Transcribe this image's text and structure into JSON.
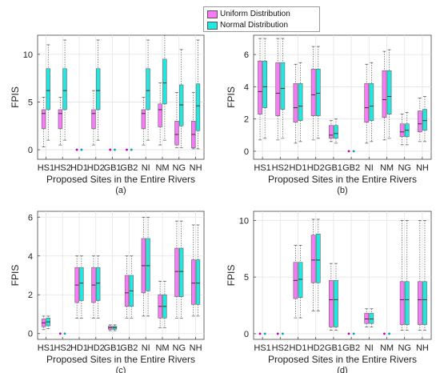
{
  "legend": [
    {
      "label": "Uniform Distribution",
      "color": "#f77af7"
    },
    {
      "label": "Normal Distribution",
      "color": "#22e6e0"
    }
  ],
  "chart_data": [
    {
      "type": "box",
      "panel": "(a)",
      "ylabel": "FPIS",
      "xlabel": "Proposed Sites in the Entire Rivers",
      "categories": [
        "HS1",
        "HS2",
        "HD1",
        "HD2",
        "GB1",
        "GB2",
        "NI",
        "NM",
        "NG",
        "NH"
      ],
      "ylim": [
        -1,
        12
      ],
      "yticks": [
        0,
        5,
        10
      ],
      "grid": true,
      "series": [
        {
          "name": "Uniform Distribution",
          "color": "#f77af7",
          "boxes": [
            [
              0.3,
              2.2,
              3.8,
              4.2,
              5.5
            ],
            [
              0.5,
              2.2,
              3.8,
              4.2,
              5.5
            ],
            [
              0,
              0,
              0,
              0,
              0
            ],
            [
              0.5,
              2.2,
              3.8,
              4.2,
              6.2
            ],
            [
              0,
              0,
              0,
              0,
              0
            ],
            [
              0,
              0,
              0,
              0,
              0
            ],
            [
              0.5,
              2.2,
              3.8,
              4.2,
              5.5
            ],
            [
              0.5,
              2.4,
              4.2,
              4.8,
              7.0
            ],
            [
              0.2,
              0.5,
              1.6,
              3.0,
              6.0
            ],
            [
              0.1,
              0.2,
              1.6,
              3.0,
              6.0
            ]
          ]
        },
        {
          "name": "Normal Distribution",
          "color": "#22e6e0",
          "boxes": [
            [
              1.0,
              4.2,
              6.2,
              8.5,
              11.0
            ],
            [
              1.0,
              4.2,
              6.2,
              8.5,
              11.5
            ],
            [
              0,
              0,
              0,
              0,
              0
            ],
            [
              1.0,
              4.2,
              6.2,
              8.5,
              11.5
            ],
            [
              0,
              0,
              0,
              0,
              0
            ],
            [
              0,
              0,
              0,
              0,
              0
            ],
            [
              1.0,
              4.2,
              6.2,
              8.5,
              11.5
            ],
            [
              1.0,
              4.8,
              7.0,
              9.5,
              12.0
            ],
            [
              0.2,
              2.5,
              4.7,
              6.8,
              10.5
            ],
            [
              0.1,
              2.0,
              4.6,
              6.9,
              11.5
            ]
          ]
        }
      ]
    },
    {
      "type": "box",
      "panel": "(b)",
      "ylabel": "FPIS",
      "xlabel": "Proposed Sites in the Entire Rivers",
      "categories": [
        "HS1",
        "HS2",
        "HD1",
        "HD2",
        "GB1",
        "GB2",
        "NI",
        "NM",
        "NG",
        "NH"
      ],
      "ylim": [
        -0.5,
        7.2
      ],
      "yticks": [
        0,
        2,
        4,
        6
      ],
      "grid": true,
      "series": [
        {
          "name": "Uniform Distribution",
          "color": "#f77af7",
          "boxes": [
            [
              0.7,
              2.3,
              3.7,
              5.6,
              7.0
            ],
            [
              0.7,
              2.2,
              3.6,
              5.5,
              7.0
            ],
            [
              0.5,
              1.8,
              2.7,
              4.2,
              5.4
            ],
            [
              0.7,
              2.2,
              3.5,
              5.1,
              6.5
            ],
            [
              0.6,
              0.8,
              1.0,
              1.6,
              1.9
            ],
            [
              0,
              0,
              0,
              0,
              0
            ],
            [
              0.5,
              1.8,
              2.7,
              4.2,
              5.4
            ],
            [
              0.7,
              2.1,
              3.2,
              5.0,
              6.2
            ],
            [
              0.4,
              0.9,
              1.2,
              1.7,
              2.3
            ],
            [
              0.6,
              1.2,
              1.7,
              2.5,
              3.3
            ]
          ]
        },
        {
          "name": "Normal Distribution",
          "color": "#22e6e0",
          "boxes": [
            [
              0.8,
              2.7,
              4.0,
              5.6,
              7.0
            ],
            [
              0.8,
              2.6,
              3.9,
              5.5,
              7.0
            ],
            [
              0.6,
              1.9,
              2.8,
              4.2,
              5.5
            ],
            [
              0.8,
              2.2,
              3.6,
              5.1,
              6.5
            ],
            [
              0.5,
              0.8,
              1.1,
              1.6,
              2.0
            ],
            [
              0,
              0,
              0,
              0,
              0
            ],
            [
              0.6,
              1.9,
              2.8,
              4.2,
              5.5
            ],
            [
              0.8,
              2.3,
              3.4,
              5.0,
              6.3
            ],
            [
              0.4,
              0.9,
              1.3,
              1.7,
              2.4
            ],
            [
              0.6,
              1.3,
              1.9,
              2.6,
              3.4
            ]
          ]
        }
      ]
    },
    {
      "type": "box",
      "panel": "(c)",
      "ylabel": "FPIS",
      "xlabel": "Proposed Sites in the Entire Rivers",
      "categories": [
        "HS1",
        "HS2",
        "HD1",
        "HD2",
        "GB1",
        "GB2",
        "NI",
        "NM",
        "NG",
        "NH"
      ],
      "ylim": [
        -0.3,
        6.3
      ],
      "yticks": [
        0,
        2,
        4,
        6
      ],
      "grid": true,
      "series": [
        {
          "name": "Uniform Distribution",
          "color": "#f77af7",
          "boxes": [
            [
              0.2,
              0.35,
              0.55,
              0.75,
              0.9
            ],
            [
              0,
              0,
              0,
              0,
              0
            ],
            [
              0.8,
              1.6,
              2.5,
              3.4,
              4.0
            ],
            [
              0.8,
              1.6,
              2.5,
              3.4,
              4.0
            ],
            [
              0.15,
              0.22,
              0.3,
              0.38,
              0.45
            ],
            [
              0.8,
              1.4,
              2.1,
              3.0,
              4.0
            ],
            [
              0.9,
              2.1,
              3.5,
              4.9,
              6.0
            ],
            [
              0.3,
              0.8,
              1.4,
              2.0,
              2.7
            ],
            [
              0.8,
              1.9,
              3.2,
              4.4,
              5.8
            ],
            [
              0.9,
              1.5,
              2.6,
              3.8,
              5.6
            ]
          ]
        },
        {
          "name": "Normal Distribution",
          "color": "#22e6e0",
          "boxes": [
            [
              0.25,
              0.4,
              0.6,
              0.8,
              0.9
            ],
            [
              0,
              0,
              0,
              0,
              0
            ],
            [
              0.8,
              1.7,
              2.6,
              3.4,
              4.0
            ],
            [
              0.8,
              1.7,
              2.6,
              3.4,
              4.0
            ],
            [
              0.15,
              0.22,
              0.3,
              0.38,
              0.45
            ],
            [
              0.8,
              1.4,
              2.2,
              3.0,
              4.0
            ],
            [
              0.9,
              2.2,
              3.5,
              4.9,
              6.0
            ],
            [
              0.3,
              0.8,
              1.4,
              2.0,
              2.7
            ],
            [
              0.8,
              1.9,
              3.2,
              4.4,
              5.8
            ],
            [
              0.9,
              1.5,
              2.6,
              3.8,
              5.6
            ]
          ]
        }
      ]
    },
    {
      "type": "box",
      "panel": "(d)",
      "ylabel": "FPIS",
      "xlabel": "Proposed Sites in the Entire Rivers",
      "categories": [
        "HS1",
        "HS2",
        "HD1",
        "HD2",
        "GB1",
        "GB2",
        "NI",
        "NM",
        "NG",
        "NH"
      ],
      "ylim": [
        -0.5,
        10.8
      ],
      "yticks": [
        0,
        5,
        10
      ],
      "grid": true,
      "series": [
        {
          "name": "Uniform Distribution",
          "color": "#f77af7",
          "boxes": [
            [
              0,
              0,
              0,
              0,
              0
            ],
            [
              0,
              0,
              0,
              0,
              0
            ],
            [
              1.4,
              3.1,
              4.7,
              6.3,
              7.8
            ],
            [
              2.0,
              4.5,
              6.5,
              8.7,
              10.1
            ],
            [
              0.3,
              0.6,
              3.0,
              4.7,
              6.2
            ],
            [
              0,
              0,
              0,
              0,
              0
            ],
            [
              0.6,
              0.9,
              1.3,
              1.8,
              2.2
            ],
            [
              0,
              0,
              0,
              0,
              0
            ],
            [
              0.3,
              0.8,
              3.0,
              4.6,
              10.0
            ],
            [
              0.3,
              0.8,
              3.0,
              4.6,
              10.0
            ]
          ]
        },
        {
          "name": "Normal Distribution",
          "color": "#22e6e0",
          "boxes": [
            [
              0,
              0,
              0,
              0,
              0
            ],
            [
              0,
              0,
              0,
              0,
              0
            ],
            [
              1.4,
              3.2,
              4.8,
              6.3,
              7.8
            ],
            [
              2.0,
              4.5,
              6.5,
              8.8,
              10.1
            ],
            [
              0.3,
              0.6,
              3.0,
              4.7,
              6.2
            ],
            [
              0,
              0,
              0,
              0,
              0
            ],
            [
              0.6,
              0.9,
              1.3,
              1.8,
              2.2
            ],
            [
              0,
              0,
              0,
              0,
              0
            ],
            [
              0.3,
              0.8,
              3.0,
              4.6,
              10.0
            ],
            [
              0.3,
              0.8,
              3.0,
              4.6,
              10.0
            ]
          ]
        }
      ]
    }
  ]
}
